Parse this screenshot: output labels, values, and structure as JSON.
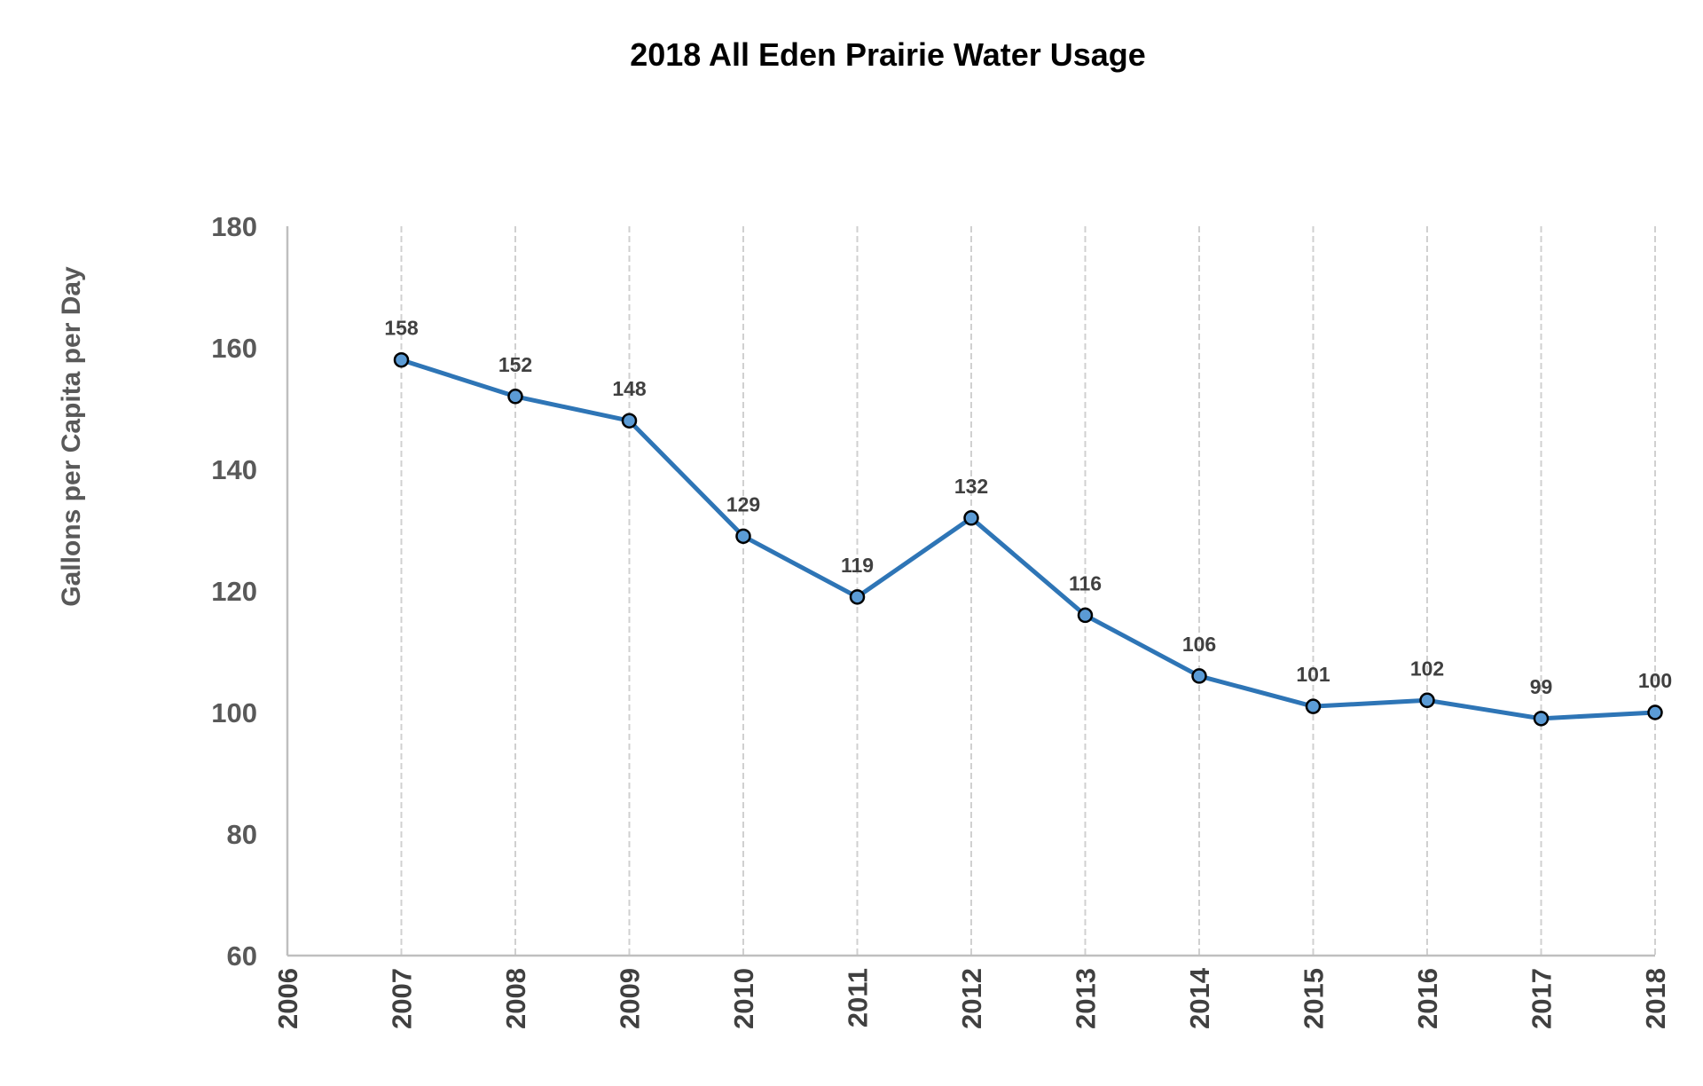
{
  "chart_data": {
    "type": "line",
    "title": "2018 All Eden Prairie Water Usage",
    "xlabel": "",
    "ylabel": "Gallons per Capita per Day",
    "xlim": [
      2006,
      2018
    ],
    "ylim": [
      60,
      180
    ],
    "x_ticks": [
      "2006",
      "2007",
      "2008",
      "2009",
      "2010",
      "2011",
      "2012",
      "2013",
      "2014",
      "2015",
      "2016",
      "2017",
      "2018"
    ],
    "y_ticks": [
      60,
      80,
      100,
      120,
      140,
      160,
      180
    ],
    "grid": "vertical dashed",
    "legend": "none",
    "series": [
      {
        "x": [
          2007,
          2008,
          2009,
          2010,
          2011,
          2012,
          2013,
          2014,
          2015,
          2016,
          2017,
          2018
        ],
        "values": [
          158,
          152,
          148,
          129,
          119,
          132,
          116,
          106,
          101,
          102,
          99,
          100
        ],
        "labels": [
          "158",
          "152",
          "148",
          "129",
          "119",
          "132",
          "116",
          "106",
          "101",
          "102",
          "99",
          "100"
        ],
        "color": "#2e75b6",
        "marker_fill": "#5b9bd5"
      }
    ]
  }
}
